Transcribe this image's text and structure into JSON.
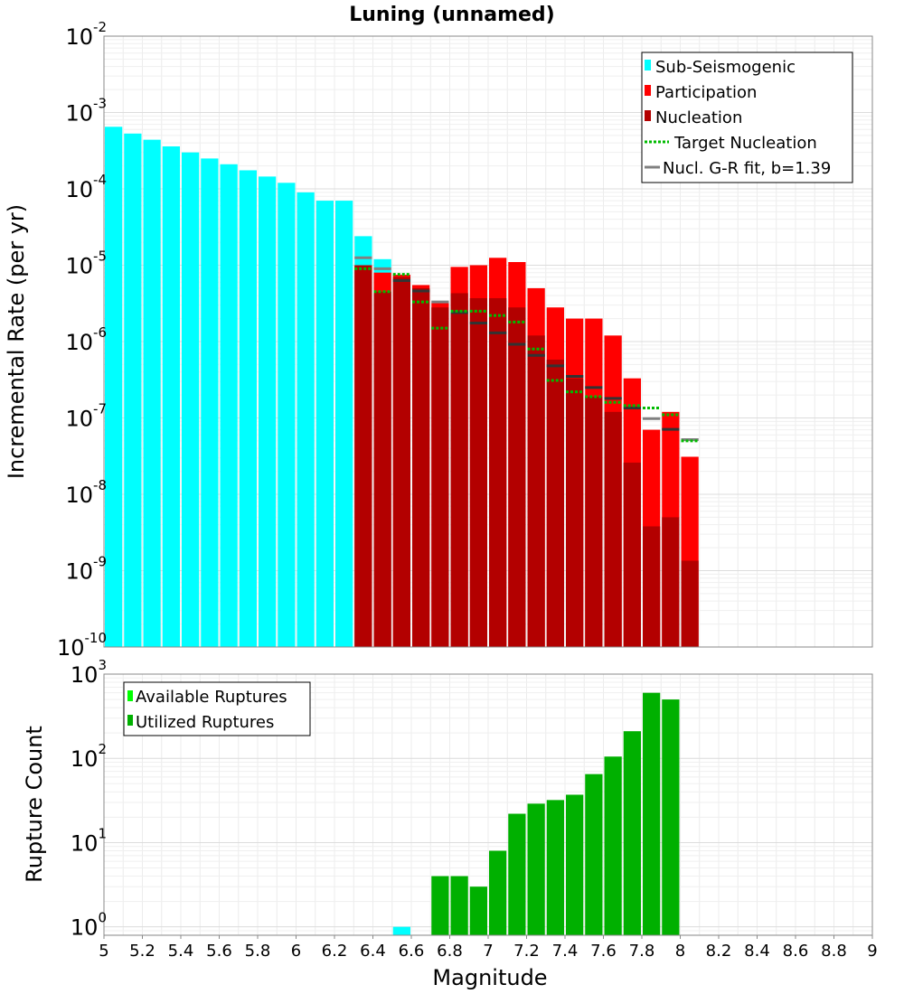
{
  "chart_data": [
    {
      "type": "bar",
      "title": "Luning (unnamed)",
      "xlabel": "Magnitude",
      "ylabel": "Incremental Rate (per yr)",
      "xlim": [
        5,
        9
      ],
      "ylim_log10": [
        -10,
        -2
      ],
      "y_scale": "log",
      "bin_width": 0.1,
      "legend_position": "top-right",
      "legend": [
        "Sub-Seismogenic",
        "Participation",
        "Nucleation",
        "Target Nucleation",
        "Nucl. G-R fit, b=1.39"
      ],
      "colors": {
        "sub_seismogenic": "#00ffff",
        "participation": "#ff0000",
        "nucleation": "#b30000",
        "target_nucleation": "#00bb00",
        "gr_fit": "#808080"
      },
      "x": [
        5.05,
        5.15,
        5.25,
        5.35,
        5.45,
        5.55,
        5.65,
        5.75,
        5.85,
        5.95,
        6.05,
        6.15,
        6.25,
        6.35,
        6.45,
        6.55,
        6.65,
        6.75,
        6.85,
        6.95,
        7.05,
        7.15,
        7.25,
        7.35,
        7.45,
        7.55,
        7.65,
        7.75,
        7.85,
        7.95,
        8.05
      ],
      "series": [
        {
          "name": "Sub-Seismogenic",
          "values": [
            0.00065,
            0.00053,
            0.00044,
            0.00036,
            0.0003,
            0.00025,
            0.00021,
            0.000175,
            0.000145,
            0.00012,
            9e-05,
            7e-05,
            7e-05,
            2.4e-05,
            1.2e-05,
            null,
            null,
            null,
            null,
            null,
            null,
            null,
            null,
            null,
            null,
            null,
            null,
            null,
            null,
            null,
            null
          ]
        },
        {
          "name": "Participation",
          "values": [
            null,
            null,
            null,
            null,
            null,
            null,
            null,
            null,
            null,
            null,
            null,
            null,
            null,
            1e-05,
            8e-06,
            7.5e-06,
            5.5e-06,
            3.2e-06,
            9.5e-06,
            1e-05,
            1.25e-05,
            1.1e-05,
            5e-06,
            2.8e-06,
            2e-06,
            2e-06,
            1.2e-06,
            3.3e-07,
            7e-08,
            1.2e-07,
            3.1e-08
          ]
        },
        {
          "name": "Nucleation",
          "values": [
            null,
            null,
            null,
            null,
            null,
            null,
            null,
            null,
            null,
            null,
            null,
            null,
            null,
            1e-05,
            4.5e-06,
            7e-06,
            5e-06,
            2.8e-06,
            4.3e-06,
            3.7e-06,
            3.7e-06,
            2.8e-06,
            1.2e-06,
            5.8e-07,
            3.3e-07,
            1.9e-07,
            1.2e-07,
            2.6e-08,
            3.8e-09,
            5e-09,
            1.35e-09
          ]
        },
        {
          "name": "Target Nucleation",
          "values": [
            null,
            null,
            null,
            null,
            null,
            null,
            null,
            null,
            null,
            null,
            null,
            null,
            null,
            9e-06,
            4.5e-06,
            7.6e-06,
            3.3e-06,
            1.5e-06,
            2.5e-06,
            2.5e-06,
            2.2e-06,
            1.8e-06,
            8e-07,
            3.1e-07,
            2.2e-07,
            1.9e-07,
            1.6e-07,
            1.45e-07,
            1.35e-07,
            1.1e-07,
            5e-08
          ]
        },
        {
          "name": "Nucl. G-R fit, b=1.39",
          "values": [
            null,
            null,
            null,
            null,
            null,
            null,
            null,
            null,
            null,
            null,
            null,
            null,
            null,
            1.25e-05,
            9e-06,
            6.3e-06,
            4.6e-06,
            3.3e-06,
            2.4e-06,
            1.75e-06,
            1.3e-06,
            9.2e-07,
            6.6e-07,
            4.8e-07,
            3.5e-07,
            2.5e-07,
            1.8e-07,
            1.35e-07,
            9.8e-08,
            7.1e-08,
            5.2e-08
          ]
        }
      ]
    },
    {
      "type": "bar",
      "title": "",
      "xlabel": "Magnitude",
      "ylabel": "Rupture Count",
      "xlim": [
        5,
        9
      ],
      "ylim_log10": [
        -0.1,
        3
      ],
      "y_scale": "log",
      "bin_width": 0.1,
      "legend_position": "top-left",
      "legend": [
        "Available Ruptures",
        "Utilized Ruptures"
      ],
      "colors": {
        "available": "#00ff00",
        "utilized": "#00b000",
        "single": "#00ffff"
      },
      "x": [
        6.55,
        6.75,
        6.85,
        6.95,
        7.05,
        7.15,
        7.25,
        7.35,
        7.45,
        7.55,
        7.65,
        7.75,
        7.85,
        7.95
      ],
      "series": [
        {
          "name": "Utilized Ruptures",
          "values": [
            1,
            4,
            4,
            3,
            8,
            22,
            29,
            32,
            37,
            65,
            105,
            210,
            600,
            500
          ]
        }
      ]
    }
  ],
  "x_ticks": [
    "5",
    "5.2",
    "5.4",
    "5.6",
    "5.8",
    "6",
    "6.2",
    "6.4",
    "6.6",
    "6.8",
    "7",
    "7.2",
    "7.4",
    "7.6",
    "7.8",
    "8",
    "8.2",
    "8.4",
    "8.6",
    "8.8",
    "9"
  ],
  "top_y_ticks": [
    "-10",
    "-9",
    "-8",
    "-7",
    "-6",
    "-5",
    "-4",
    "-3",
    "-2"
  ],
  "bottom_y_ticks": [
    "0",
    "1",
    "2",
    "3"
  ],
  "y_tick_base": "10"
}
